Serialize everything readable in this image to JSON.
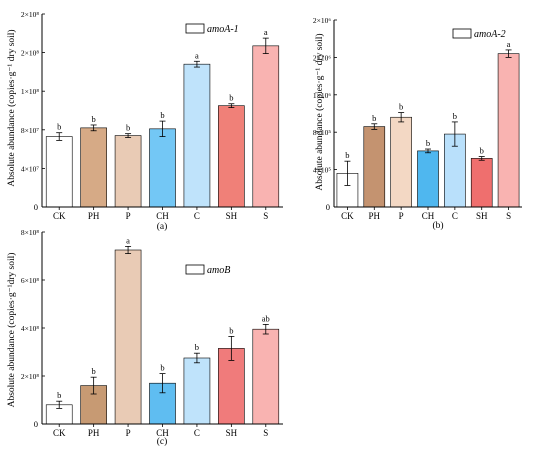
{
  "chart_data": [
    {
      "type": "bar",
      "title": "",
      "panel_label": "(a)",
      "legend": "amoA-1",
      "legend_position": "top-right",
      "ylabel": "Absolute abundance (copies·g⁻¹ dry soil)",
      "xlabel": "",
      "categories": [
        "CK",
        "PH",
        "P",
        "CH",
        "C",
        "SH",
        "S"
      ],
      "values": [
        73000000,
        82000000,
        74000000,
        81000000,
        148000000,
        105000000,
        167000000
      ],
      "errors": [
        4000000,
        3000000,
        2000000,
        8000000,
        3000000,
        2000000,
        8000000
      ],
      "letters": [
        "b",
        "b",
        "b",
        "b",
        "a",
        "b",
        "a"
      ],
      "colors": [
        "#ffffff",
        "#d6aa86",
        "#e9cbb5",
        "#73c7f5",
        "#bfe3fb",
        "#f08078",
        "#f9b3b1"
      ],
      "ylim": [
        0,
        200000000
      ],
      "yticks": [
        {
          "value": 40000000,
          "label": "4×10⁷"
        },
        {
          "value": 80000000,
          "label": "8×10⁷"
        },
        {
          "value": 120000000,
          "label": "1×10⁸"
        },
        {
          "value": 160000000,
          "label": "2×10⁸"
        },
        {
          "value": 200000000,
          "label": "2×10⁸"
        }
      ]
    },
    {
      "type": "bar",
      "title": "",
      "panel_label": "(b)",
      "legend": "amoA-2",
      "legend_position": "top-right",
      "ylabel": "Absolute abundance (copies·g⁻¹ dry soil)",
      "xlabel": "",
      "categories": [
        "CK",
        "PH",
        "P",
        "CH",
        "C",
        "SH",
        "S"
      ],
      "values": [
        360000,
        860000,
        960000,
        600000,
        780000,
        520000,
        1640000
      ],
      "errors": [
        130000,
        30000,
        50000,
        20000,
        130000,
        20000,
        40000
      ],
      "letters": [
        "b",
        "b",
        "b",
        "b",
        "b",
        "b",
        "a"
      ],
      "colors": [
        "#ffffff",
        "#c49370",
        "#f3d8c4",
        "#4fb7ef",
        "#b9e0fb",
        "#ef6f6e",
        "#f9b3b1"
      ],
      "ylim": [
        0,
        2000000
      ],
      "yticks": [
        {
          "value": 400000,
          "label": "4×10⁵"
        },
        {
          "value": 800000,
          "label": "8×10⁵"
        },
        {
          "value": 1200000,
          "label": "1×10⁶"
        },
        {
          "value": 1600000,
          "label": "2×10⁶"
        },
        {
          "value": 2000000,
          "label": "2×10⁶"
        }
      ]
    },
    {
      "type": "bar",
      "title": "",
      "panel_label": "(c)",
      "legend": "amoB",
      "legend_position": "top-left",
      "ylabel": "Absolute abundance (copies·g⁻¹dry soil)",
      "xlabel": "",
      "categories": [
        "CK",
        "PH",
        "P",
        "CH",
        "C",
        "SH",
        "S"
      ],
      "values": [
        80000000,
        160000000,
        725000000,
        170000000,
        275000000,
        315000000,
        395000000
      ],
      "errors": [
        15000000,
        35000000,
        15000000,
        40000000,
        20000000,
        50000000,
        20000000
      ],
      "letters": [
        "b",
        "b",
        "a",
        "b",
        "b",
        "b",
        "ab"
      ],
      "colors": [
        "#ffffff",
        "#c79a73",
        "#e9cbb5",
        "#5fbdf1",
        "#bfe3fb",
        "#f07b7b",
        "#f9b3b1"
      ],
      "ylim": [
        0,
        800000000
      ],
      "yticks": [
        {
          "value": 200000000,
          "label": "2×10⁸"
        },
        {
          "value": 400000000,
          "label": "4×10⁸"
        },
        {
          "value": 600000000,
          "label": "6×10⁸"
        },
        {
          "value": 800000000,
          "label": "8×10⁸"
        }
      ]
    }
  ]
}
